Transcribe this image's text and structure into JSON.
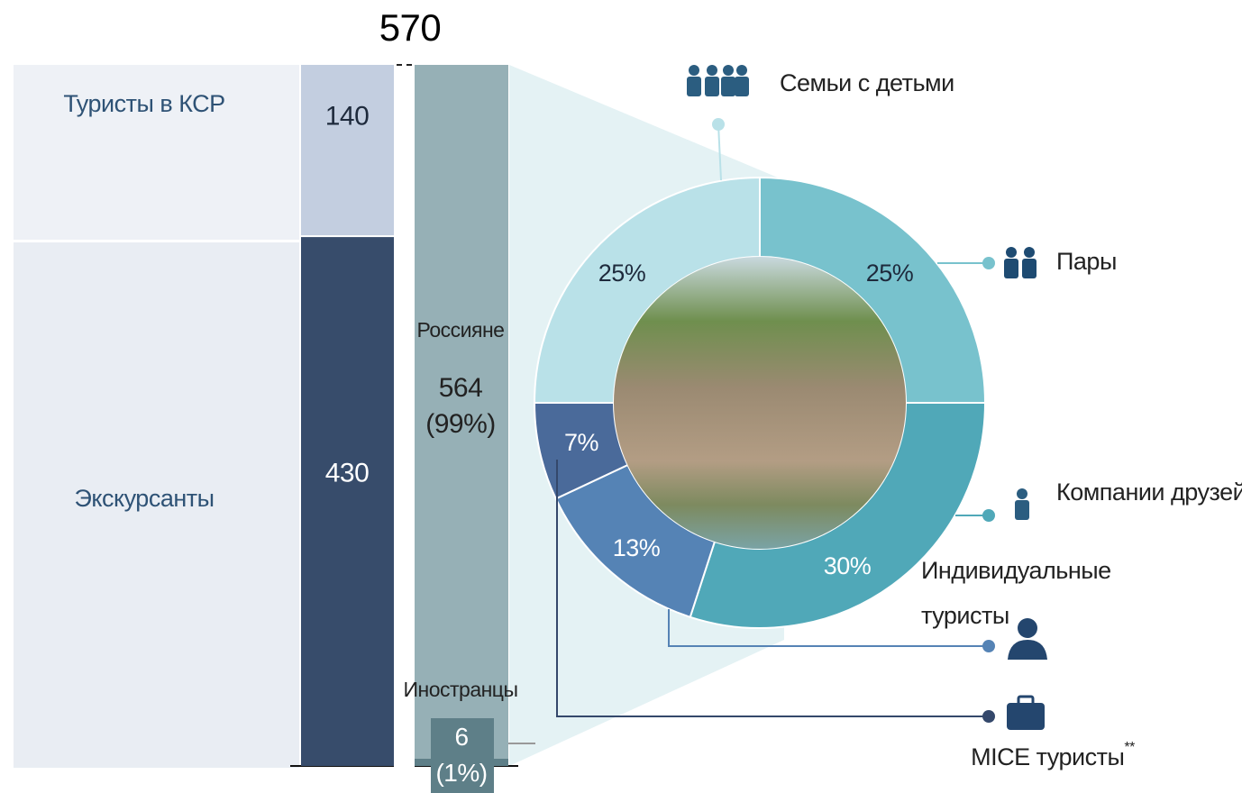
{
  "chart_data": [
    {
      "type": "stacked-bar",
      "total": 570,
      "series": [
        {
          "name": "Туристы в КСР",
          "color": "#c3cee0",
          "values": [
            140
          ]
        },
        {
          "name": "Экскурсанты",
          "color": "#374c6b",
          "values": [
            430
          ]
        }
      ]
    },
    {
      "type": "stacked-bar",
      "series": [
        {
          "name": "Россияне",
          "color": "#96b0b6",
          "values": [
            564
          ],
          "value_labels": [
            "564 (99%)"
          ]
        },
        {
          "name": "Иностранцы",
          "color": "#5e7f88",
          "values": [
            6
          ],
          "value_labels": [
            "6 (1%)"
          ]
        }
      ]
    },
    {
      "type": "donut",
      "categories": [
        "Семьи с детьми",
        "Пары",
        "Компании друзей",
        "Индивидуальные туристы",
        "MICE туристы"
      ],
      "values": [
        25,
        25,
        30,
        13,
        7
      ],
      "value_labels": [
        "25%",
        "25%",
        "30%",
        "13%",
        "7%"
      ],
      "colors": [
        "#b9e1e8",
        "#78c2cd",
        "#50a8b8",
        "#5583b5",
        "#4a6a9a"
      ],
      "footnote_mark": "**"
    }
  ]
}
